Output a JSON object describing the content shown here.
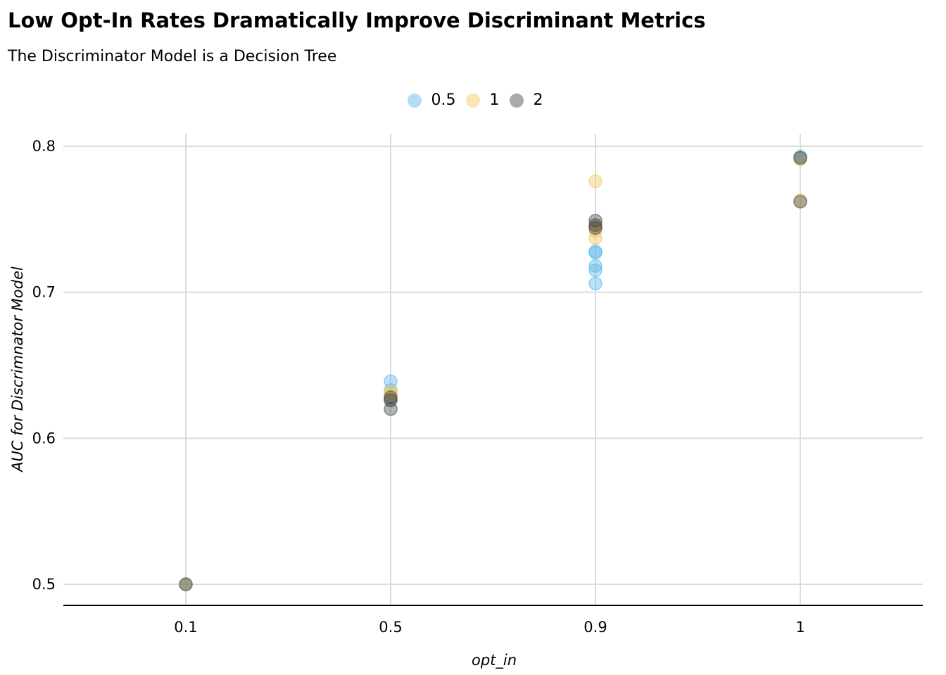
{
  "title": "Low Opt-In Rates Dramatically Improve Discriminant Metrics",
  "subtitle": "The Discriminator Model is a Decision Tree",
  "chart_data": {
    "type": "scatter",
    "title": "Low Opt-In Rates Dramatically Improve Discriminant Metrics",
    "subtitle": "The Discriminator Model is a Decision Tree",
    "xlabel": "opt_in",
    "ylabel": "AUC for Discrimnator Model",
    "x_categories": [
      "0.1",
      "0.5",
      "0.9",
      "1"
    ],
    "y_ticks": [
      "0.5",
      "0.6",
      "0.7",
      "0.8"
    ],
    "ylim": [
      0.486,
      0.808
    ],
    "grid": true,
    "legend_position": "top",
    "series": [
      {
        "name": "0.5",
        "color": "#56B4E9",
        "points": [
          {
            "x": "0.1",
            "y": 0.5
          },
          {
            "x": "0.5",
            "y": 0.639
          },
          {
            "x": "0.5",
            "y": 0.633
          },
          {
            "x": "0.5",
            "y": 0.629
          },
          {
            "x": "0.5",
            "y": 0.626
          },
          {
            "x": "0.9",
            "y": 0.728
          },
          {
            "x": "0.9",
            "y": 0.727
          },
          {
            "x": "0.9",
            "y": 0.718
          },
          {
            "x": "0.9",
            "y": 0.715
          },
          {
            "x": "0.9",
            "y": 0.706
          },
          {
            "x": "1",
            "y": 0.793
          },
          {
            "x": "1",
            "y": 0.792
          }
        ]
      },
      {
        "name": "1",
        "color": "#F0C75A",
        "points": [
          {
            "x": "0.1",
            "y": 0.5
          },
          {
            "x": "0.5",
            "y": 0.632
          },
          {
            "x": "0.5",
            "y": 0.63
          },
          {
            "x": "0.5",
            "y": 0.628
          },
          {
            "x": "0.9",
            "y": 0.776
          },
          {
            "x": "0.9",
            "y": 0.745
          },
          {
            "x": "0.9",
            "y": 0.742
          },
          {
            "x": "0.9",
            "y": 0.737
          },
          {
            "x": "1",
            "y": 0.791
          },
          {
            "x": "1",
            "y": 0.763
          }
        ]
      },
      {
        "name": "2",
        "color": "#444444",
        "points": [
          {
            "x": "0.1",
            "y": 0.5
          },
          {
            "x": "0.5",
            "y": 0.628
          },
          {
            "x": "0.5",
            "y": 0.626
          },
          {
            "x": "0.5",
            "y": 0.62
          },
          {
            "x": "0.9",
            "y": 0.749
          },
          {
            "x": "0.9",
            "y": 0.746
          },
          {
            "x": "0.9",
            "y": 0.744
          },
          {
            "x": "1",
            "y": 0.792
          },
          {
            "x": "1",
            "y": 0.762
          }
        ]
      }
    ]
  }
}
